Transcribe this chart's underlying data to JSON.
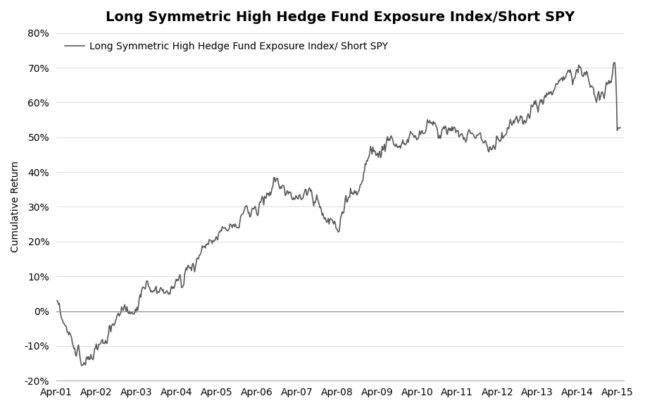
{
  "title": "Long Symmetric High Hedge Fund Exposure Index/Short SPY",
  "legend_label": "Long Symmetric High Hedge Fund Exposure Index/ Short SPY",
  "ylabel": "Cumulative Return",
  "line_color": "#595959",
  "line_width": 1.2,
  "background_color": "#ffffff",
  "ylim": [
    -0.2,
    0.8
  ],
  "yticks": [
    -0.2,
    -0.1,
    0.0,
    0.1,
    0.2,
    0.3,
    0.4,
    0.5,
    0.6,
    0.7,
    0.8
  ],
  "ytick_labels": [
    "-20%",
    "-10%",
    "0%",
    "10%",
    "20%",
    "30%",
    "40%",
    "50%",
    "60%",
    "70%",
    "80%"
  ],
  "xtick_labels": [
    "Apr-01",
    "Apr-02",
    "Apr-03",
    "Apr-04",
    "Apr-05",
    "Apr-06",
    "Apr-07",
    "Apr-08",
    "Apr-09",
    "Apr-10",
    "Apr-11",
    "Apr-12",
    "Apr-13",
    "Apr-14",
    "Apr-15"
  ],
  "title_fontsize": 14,
  "tick_fontsize": 10,
  "legend_fontsize": 10
}
